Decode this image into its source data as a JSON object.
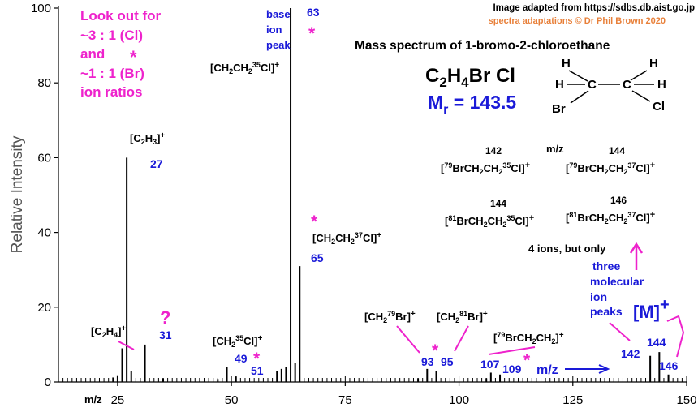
{
  "chart_data": {
    "type": "bar",
    "title": "Mass spectrum of 1-bromo-2-chloroethane",
    "ylabel": "Relative Intensity",
    "xlabel": "m/z",
    "xlim": [
      12,
      150
    ],
    "ylim": [
      0,
      100
    ],
    "xticks": [
      25,
      50,
      75,
      100,
      125,
      150
    ],
    "yticks": [
      0,
      20,
      40,
      60,
      80,
      100
    ],
    "peaks": [
      {
        "mz": 24,
        "intensity": 1.2
      },
      {
        "mz": 25,
        "intensity": 1.8
      },
      {
        "mz": 26,
        "intensity": 9
      },
      {
        "mz": 27,
        "intensity": 60
      },
      {
        "mz": 28,
        "intensity": 3
      },
      {
        "mz": 31,
        "intensity": 10
      },
      {
        "mz": 35,
        "intensity": 1
      },
      {
        "mz": 47,
        "intensity": 0.8
      },
      {
        "mz": 49,
        "intensity": 4
      },
      {
        "mz": 51,
        "intensity": 1.5
      },
      {
        "mz": 60,
        "intensity": 3
      },
      {
        "mz": 61,
        "intensity": 3.5
      },
      {
        "mz": 62,
        "intensity": 4
      },
      {
        "mz": 63,
        "intensity": 100
      },
      {
        "mz": 64,
        "intensity": 5
      },
      {
        "mz": 65,
        "intensity": 31
      },
      {
        "mz": 91,
        "intensity": 1
      },
      {
        "mz": 93,
        "intensity": 3.5
      },
      {
        "mz": 95,
        "intensity": 3
      },
      {
        "mz": 106,
        "intensity": 1
      },
      {
        "mz": 107,
        "intensity": 2.5
      },
      {
        "mz": 109,
        "intensity": 2
      },
      {
        "mz": 142,
        "intensity": 7
      },
      {
        "mz": 144,
        "intensity": 8
      },
      {
        "mz": 146,
        "intensity": 2
      }
    ]
  },
  "credits": {
    "line1": "Image adapted from https://sdbs.db.aist.go.jp",
    "line2": "spectra adaptations © Dr Phil Brown 2020"
  },
  "lookout": [
    "Look out for",
    "~3 : 1 (Cl)",
    "and",
    "~1 : 1 (Br)",
    "ion ratios"
  ],
  "formula": {
    "c": "C",
    "c_sub": "2",
    "h": "H",
    "h_sub": "4",
    "rest": "Br Cl"
  },
  "mr": {
    "label": "M",
    "sub": "r",
    "value": " = 143.5"
  },
  "structure": {
    "h": "H",
    "c": "C",
    "br": "Br",
    "cl": "Cl"
  },
  "ion_table": {
    "mz_header": "m/z",
    "row1": {
      "mz_a": "142",
      "mz_b": "144",
      "ion_a": [
        "[",
        "79",
        "BrCH",
        "2",
        "CH",
        "2",
        "35",
        "Cl]",
        "+"
      ],
      "ion_b": [
        "[",
        "79",
        "BrCH",
        "2",
        "CH",
        "2",
        "37",
        "Cl]",
        "+"
      ]
    },
    "row2": {
      "mz_a": "144",
      "mz_b": "146",
      "ion_a": [
        "[",
        "81",
        "BrCH",
        "2",
        "CH",
        "2",
        "35",
        "Cl]",
        "+"
      ],
      "ion_b": [
        "[",
        "81",
        "BrCH",
        "2",
        "CH",
        "2",
        "37",
        "Cl]",
        "+"
      ]
    }
  },
  "notes": {
    "four_ions": "4 ions, but only",
    "three_mol": [
      "three",
      "molecular",
      "ion",
      "peaks"
    ],
    "m_plus": "[M]",
    "plus": "+",
    "mz_arrow": "m/z",
    "question": "?",
    "star": "*",
    "base": [
      "base",
      "ion",
      "peak"
    ]
  },
  "peak_labels": {
    "l27": "27",
    "l31": "31",
    "l49": "49",
    "l51": "51",
    "l63": "63",
    "l65": "65",
    "l93": "93",
    "l95": "95",
    "l107": "107",
    "l109": "109",
    "l142": "142",
    "l144": "144",
    "l146": "146"
  },
  "colors": {
    "blue": "#1a1ad8",
    "magenta": "#ee22cc",
    "orange": "#e8803a",
    "black": "#000000"
  }
}
